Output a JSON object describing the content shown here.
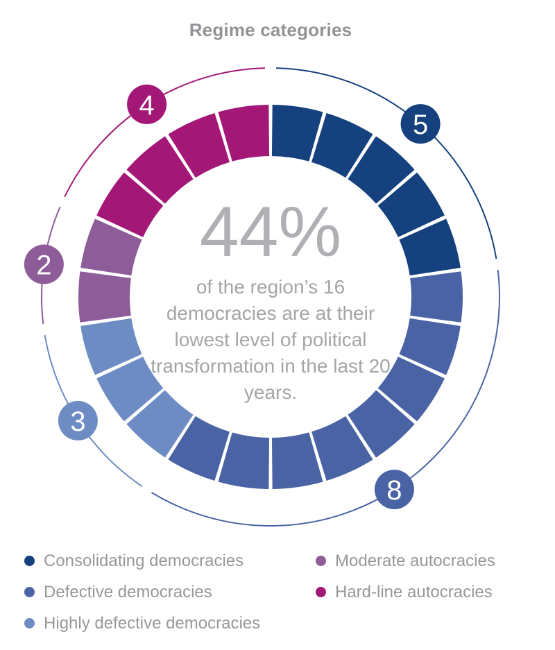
{
  "title": "Regime categories",
  "chart_data": {
    "type": "donut",
    "title": "Regime categories",
    "total_segments": 22,
    "start_angle_deg": 0,
    "direction": "clockwise",
    "categories": [
      {
        "label": "Consolidating democracies",
        "value": 5,
        "color": "#15417e"
      },
      {
        "label": "Defective democracies",
        "value": 8,
        "color": "#4a63a4"
      },
      {
        "label": "Highly defective democracies",
        "value": 3,
        "color": "#6e8cc4"
      },
      {
        "label": "Moderate autocracies",
        "value": 2,
        "color": "#8d5c99"
      },
      {
        "label": "Hard-line autocracies",
        "value": 4,
        "color": "#a31777"
      }
    ],
    "badges": [
      {
        "value": "5",
        "color": "#15417e"
      },
      {
        "value": "8",
        "color": "#4a63a4"
      },
      {
        "value": "3",
        "color": "#6e8cc4"
      },
      {
        "value": "2",
        "color": "#8d5c99"
      },
      {
        "value": "4",
        "color": "#a31777"
      }
    ],
    "center_annotation": {
      "value": "44%",
      "text": "of the region’s 16 democracies are at their lowest level of political transformation in the last 20 years."
    },
    "legend_position": "bottom",
    "legend_columns": [
      3,
      2
    ]
  }
}
